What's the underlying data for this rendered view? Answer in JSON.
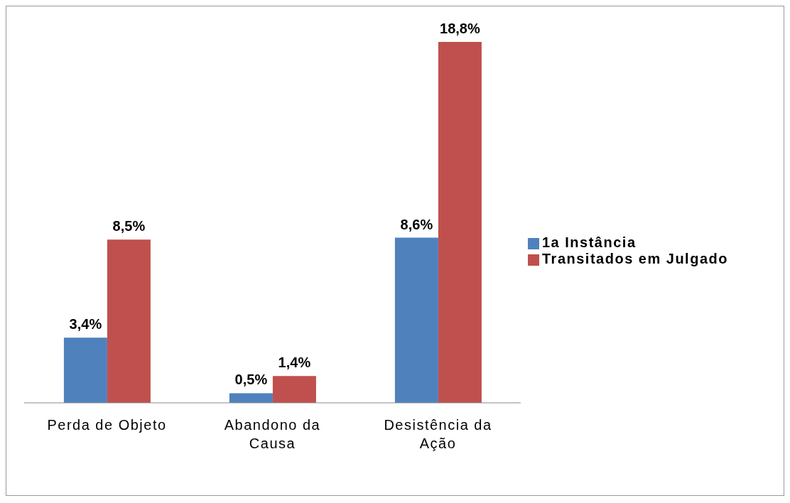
{
  "chart_data": {
    "type": "bar",
    "categories": [
      "Perda de Objeto",
      "Abandono da Causa",
      "Desistência da Ação"
    ],
    "series": [
      {
        "name": "1a Instância",
        "color": "#4f81bd",
        "values": [
          3.4,
          0.5,
          8.6
        ],
        "value_labels": [
          "3,4%",
          "0,5%",
          "8,6%"
        ]
      },
      {
        "name": "Transitados em Julgado",
        "color": "#c0504d",
        "values": [
          8.5,
          1.4,
          18.8
        ],
        "value_labels": [
          "8,5%",
          "1,4%",
          "18,8%"
        ]
      }
    ],
    "legend": "right",
    "grid": false
  }
}
